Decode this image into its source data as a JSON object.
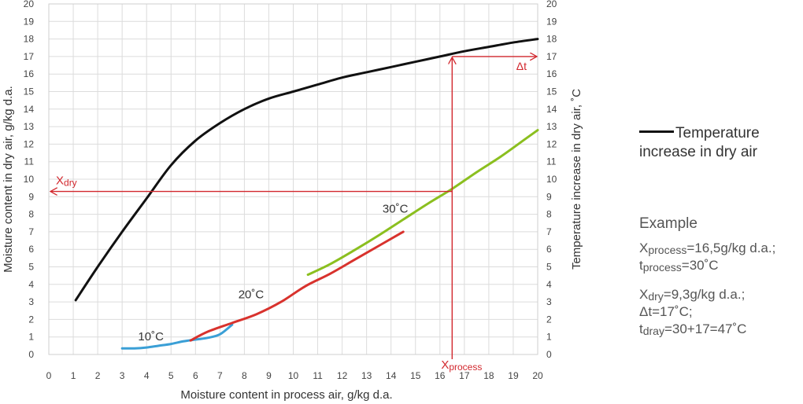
{
  "chart_data": {
    "type": "line",
    "xlabel": "Moisture content in process air, g/kg d.a.",
    "ylabel": "Moisture content in dry air, g/kg d.a.",
    "y2label": "Temperature increase in dry air, ˚C",
    "xlim": [
      0,
      20
    ],
    "ylim": [
      0,
      20
    ],
    "y2lim": [
      0,
      20
    ],
    "grid": true,
    "x_ticks": [
      0,
      1,
      2,
      3,
      4,
      5,
      6,
      7,
      8,
      9,
      10,
      11,
      12,
      13,
      14,
      15,
      16,
      17,
      18,
      19,
      20
    ],
    "y_ticks": [
      0,
      1,
      2,
      3,
      4,
      5,
      6,
      7,
      8,
      9,
      10,
      11,
      12,
      13,
      14,
      15,
      16,
      17,
      18,
      19,
      20
    ],
    "legend_placement": "right",
    "series": [
      {
        "name": "Temperature increase in dry air",
        "color": "#111111",
        "axis": "right",
        "points": [
          [
            1.1,
            3.1
          ],
          [
            2,
            5.0
          ],
          [
            3,
            7.0
          ],
          [
            4,
            8.9
          ],
          [
            5,
            10.8
          ],
          [
            6,
            12.2
          ],
          [
            7,
            13.2
          ],
          [
            8,
            14.0
          ],
          [
            9,
            14.6
          ],
          [
            10,
            15.0
          ],
          [
            11,
            15.4
          ],
          [
            12,
            15.8
          ],
          [
            13,
            16.1
          ],
          [
            14,
            16.4
          ],
          [
            15,
            16.7
          ],
          [
            16,
            17.0
          ],
          [
            17,
            17.3
          ],
          [
            18,
            17.55
          ],
          [
            19,
            17.8
          ],
          [
            20,
            18.0
          ]
        ]
      },
      {
        "label": "10˚C",
        "color": "#3a9fd6",
        "points": [
          [
            3,
            0.35
          ],
          [
            3.5,
            0.35
          ],
          [
            4,
            0.4
          ],
          [
            4.5,
            0.5
          ],
          [
            5,
            0.6
          ],
          [
            5.5,
            0.75
          ],
          [
            6,
            0.85
          ],
          [
            6.5,
            0.95
          ],
          [
            7,
            1.15
          ],
          [
            7.5,
            1.7
          ]
        ]
      },
      {
        "label": "20˚C",
        "color": "#d8322d",
        "points": [
          [
            5.8,
            0.8
          ],
          [
            6.5,
            1.3
          ],
          [
            7.5,
            1.8
          ],
          [
            8.5,
            2.3
          ],
          [
            9.5,
            3.0
          ],
          [
            10.5,
            3.9
          ],
          [
            11.5,
            4.6
          ],
          [
            12.5,
            5.4
          ],
          [
            13.5,
            6.2
          ],
          [
            14.5,
            7.0
          ]
        ]
      },
      {
        "label": "30˚C",
        "color": "#8bbf1f",
        "points": [
          [
            10.6,
            4.55
          ],
          [
            11.5,
            5.15
          ],
          [
            12.5,
            5.95
          ],
          [
            13.5,
            6.8
          ],
          [
            14.5,
            7.7
          ],
          [
            15.5,
            8.6
          ],
          [
            16.5,
            9.45
          ],
          [
            17.5,
            10.4
          ],
          [
            18.5,
            11.3
          ],
          [
            19.5,
            12.3
          ],
          [
            20,
            12.8
          ]
        ]
      }
    ],
    "annotations": {
      "x_process": 16.5,
      "x_dry": 9.3,
      "delta_t": 17,
      "color": "#d2282e",
      "label_dry": {
        "main": "X",
        "sub": "dry"
      },
      "label_process": {
        "main": "X",
        "sub": "process"
      },
      "label_delta": "Δt"
    }
  },
  "legend": {
    "label_line1": "Temperature",
    "label_line2": "increase in dry air"
  },
  "example": {
    "title": "Example",
    "line1_main": "X",
    "line1_sub": "process",
    "line1_rest": "=16,5g/kg d.a.;",
    "line2_main": "t",
    "line2_sub": "process",
    "line2_rest": "=30˚C",
    "line3_main": "X",
    "line3_sub": "dry",
    "line3_rest": "=9,3g/kg d.a.;",
    "line4": "Δt=17˚C;",
    "line5_main": "t",
    "line5_sub": "dray",
    "line5_rest": "=30+17=47˚C"
  }
}
